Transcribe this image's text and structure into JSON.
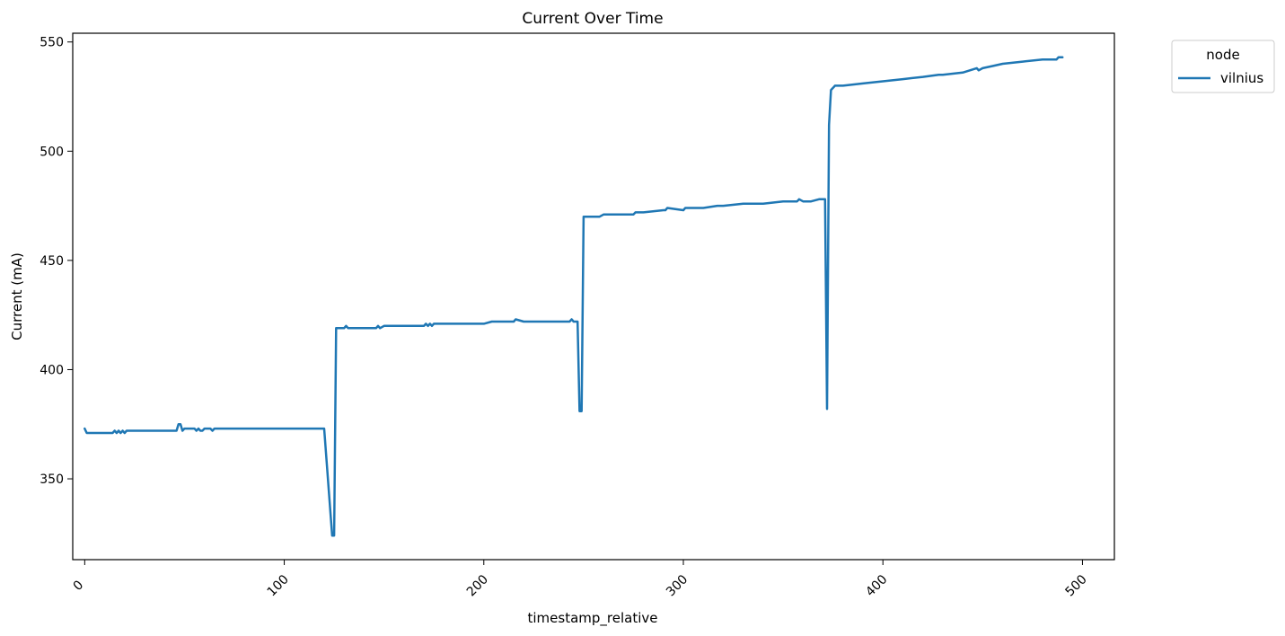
{
  "chart_data": {
    "type": "line",
    "title": "Current Over Time",
    "xlabel": "timestamp_relative",
    "ylabel": "Current (mA)",
    "xlim": [
      -6,
      516
    ],
    "ylim": [
      313,
      554
    ],
    "x_ticks": [
      0,
      100,
      200,
      300,
      400,
      500
    ],
    "x_tick_labels": [
      "0",
      "100",
      "200",
      "300",
      "400",
      "500"
    ],
    "y_ticks": [
      350,
      400,
      450,
      500,
      550
    ],
    "y_tick_labels": [
      "350",
      "400",
      "450",
      "500",
      "550"
    ],
    "grid": false,
    "legend": {
      "title": "node",
      "placement": "outside-top-right",
      "entries": [
        "vilnius"
      ]
    },
    "series": [
      {
        "name": "vilnius",
        "color": "#1f77b4",
        "x": [
          0,
          1,
          5,
          10,
          14,
          15,
          16,
          17,
          18,
          19,
          20,
          21,
          22,
          30,
          40,
          46,
          47,
          48,
          49,
          50,
          55,
          56,
          57,
          58,
          59,
          60,
          63,
          64,
          65,
          70,
          80,
          90,
          100,
          110,
          120,
          124,
          125,
          126,
          128,
          130,
          131,
          132,
          140,
          146,
          147,
          148,
          150,
          160,
          170,
          171,
          172,
          173,
          174,
          175,
          180,
          190,
          200,
          204,
          210,
          215,
          216,
          220,
          230,
          240,
          243,
          244,
          245,
          247,
          248,
          249,
          250,
          255,
          258,
          260,
          265,
          270,
          275,
          276,
          280,
          290,
          291,
          292,
          300,
          301,
          302,
          310,
          317,
          318,
          320,
          330,
          340,
          350,
          357,
          358,
          360,
          364,
          368,
          371,
          372,
          373,
          374,
          375,
          376,
          380,
          390,
          400,
          410,
          420,
          428,
          430,
          440,
          447,
          448,
          450,
          455,
          460,
          470,
          480,
          487,
          488,
          490
        ],
        "y": [
          373,
          371,
          371,
          371,
          371,
          372,
          371,
          372,
          371,
          372,
          371,
          372,
          372,
          372,
          372,
          372,
          375,
          375,
          372,
          373,
          373,
          372,
          373,
          372,
          372,
          373,
          373,
          372,
          373,
          373,
          373,
          373,
          373,
          373,
          373,
          324,
          324,
          419,
          419,
          419,
          420,
          419,
          419,
          419,
          420,
          419,
          420,
          420,
          420,
          421,
          420,
          421,
          420,
          421,
          421,
          421,
          421,
          422,
          422,
          422,
          423,
          422,
          422,
          422,
          422,
          423,
          422,
          422,
          381,
          381,
          470,
          470,
          470,
          471,
          471,
          471,
          471,
          472,
          472,
          473,
          473,
          474,
          473,
          474,
          474,
          474,
          475,
          475,
          475,
          476,
          476,
          477,
          477,
          478,
          477,
          477,
          478,
          478,
          382,
          512,
          528,
          529,
          530,
          530,
          531,
          532,
          533,
          534,
          535,
          535,
          536,
          538,
          537,
          538,
          539,
          540,
          541,
          542,
          542,
          543,
          543
        ]
      }
    ]
  }
}
